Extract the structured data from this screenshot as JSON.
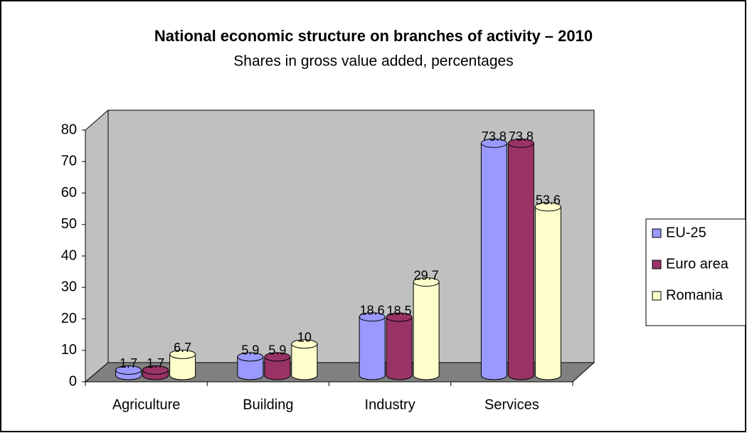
{
  "chart_data": {
    "type": "bar3d",
    "title": "National economic structure on branches of activity – 2010",
    "subtitle": "Shares in gross value added, percentages",
    "categories": [
      "Agriculture",
      "Building",
      "Industry",
      "Services"
    ],
    "series": [
      {
        "name": "EU-25",
        "color": "#9999ff",
        "values": [
          1.7,
          5.9,
          18.6,
          73.8
        ]
      },
      {
        "name": "Euro area",
        "color": "#993366",
        "values": [
          1.7,
          5.9,
          18.5,
          73.8
        ]
      },
      {
        "name": "Romania",
        "color": "#ffffcc",
        "values": [
          6.7,
          10,
          29.7,
          53.6
        ]
      }
    ],
    "ylim": [
      0,
      80
    ],
    "yticks": [
      0,
      10,
      20,
      30,
      40,
      50,
      60,
      70,
      80
    ],
    "legend": "right"
  }
}
